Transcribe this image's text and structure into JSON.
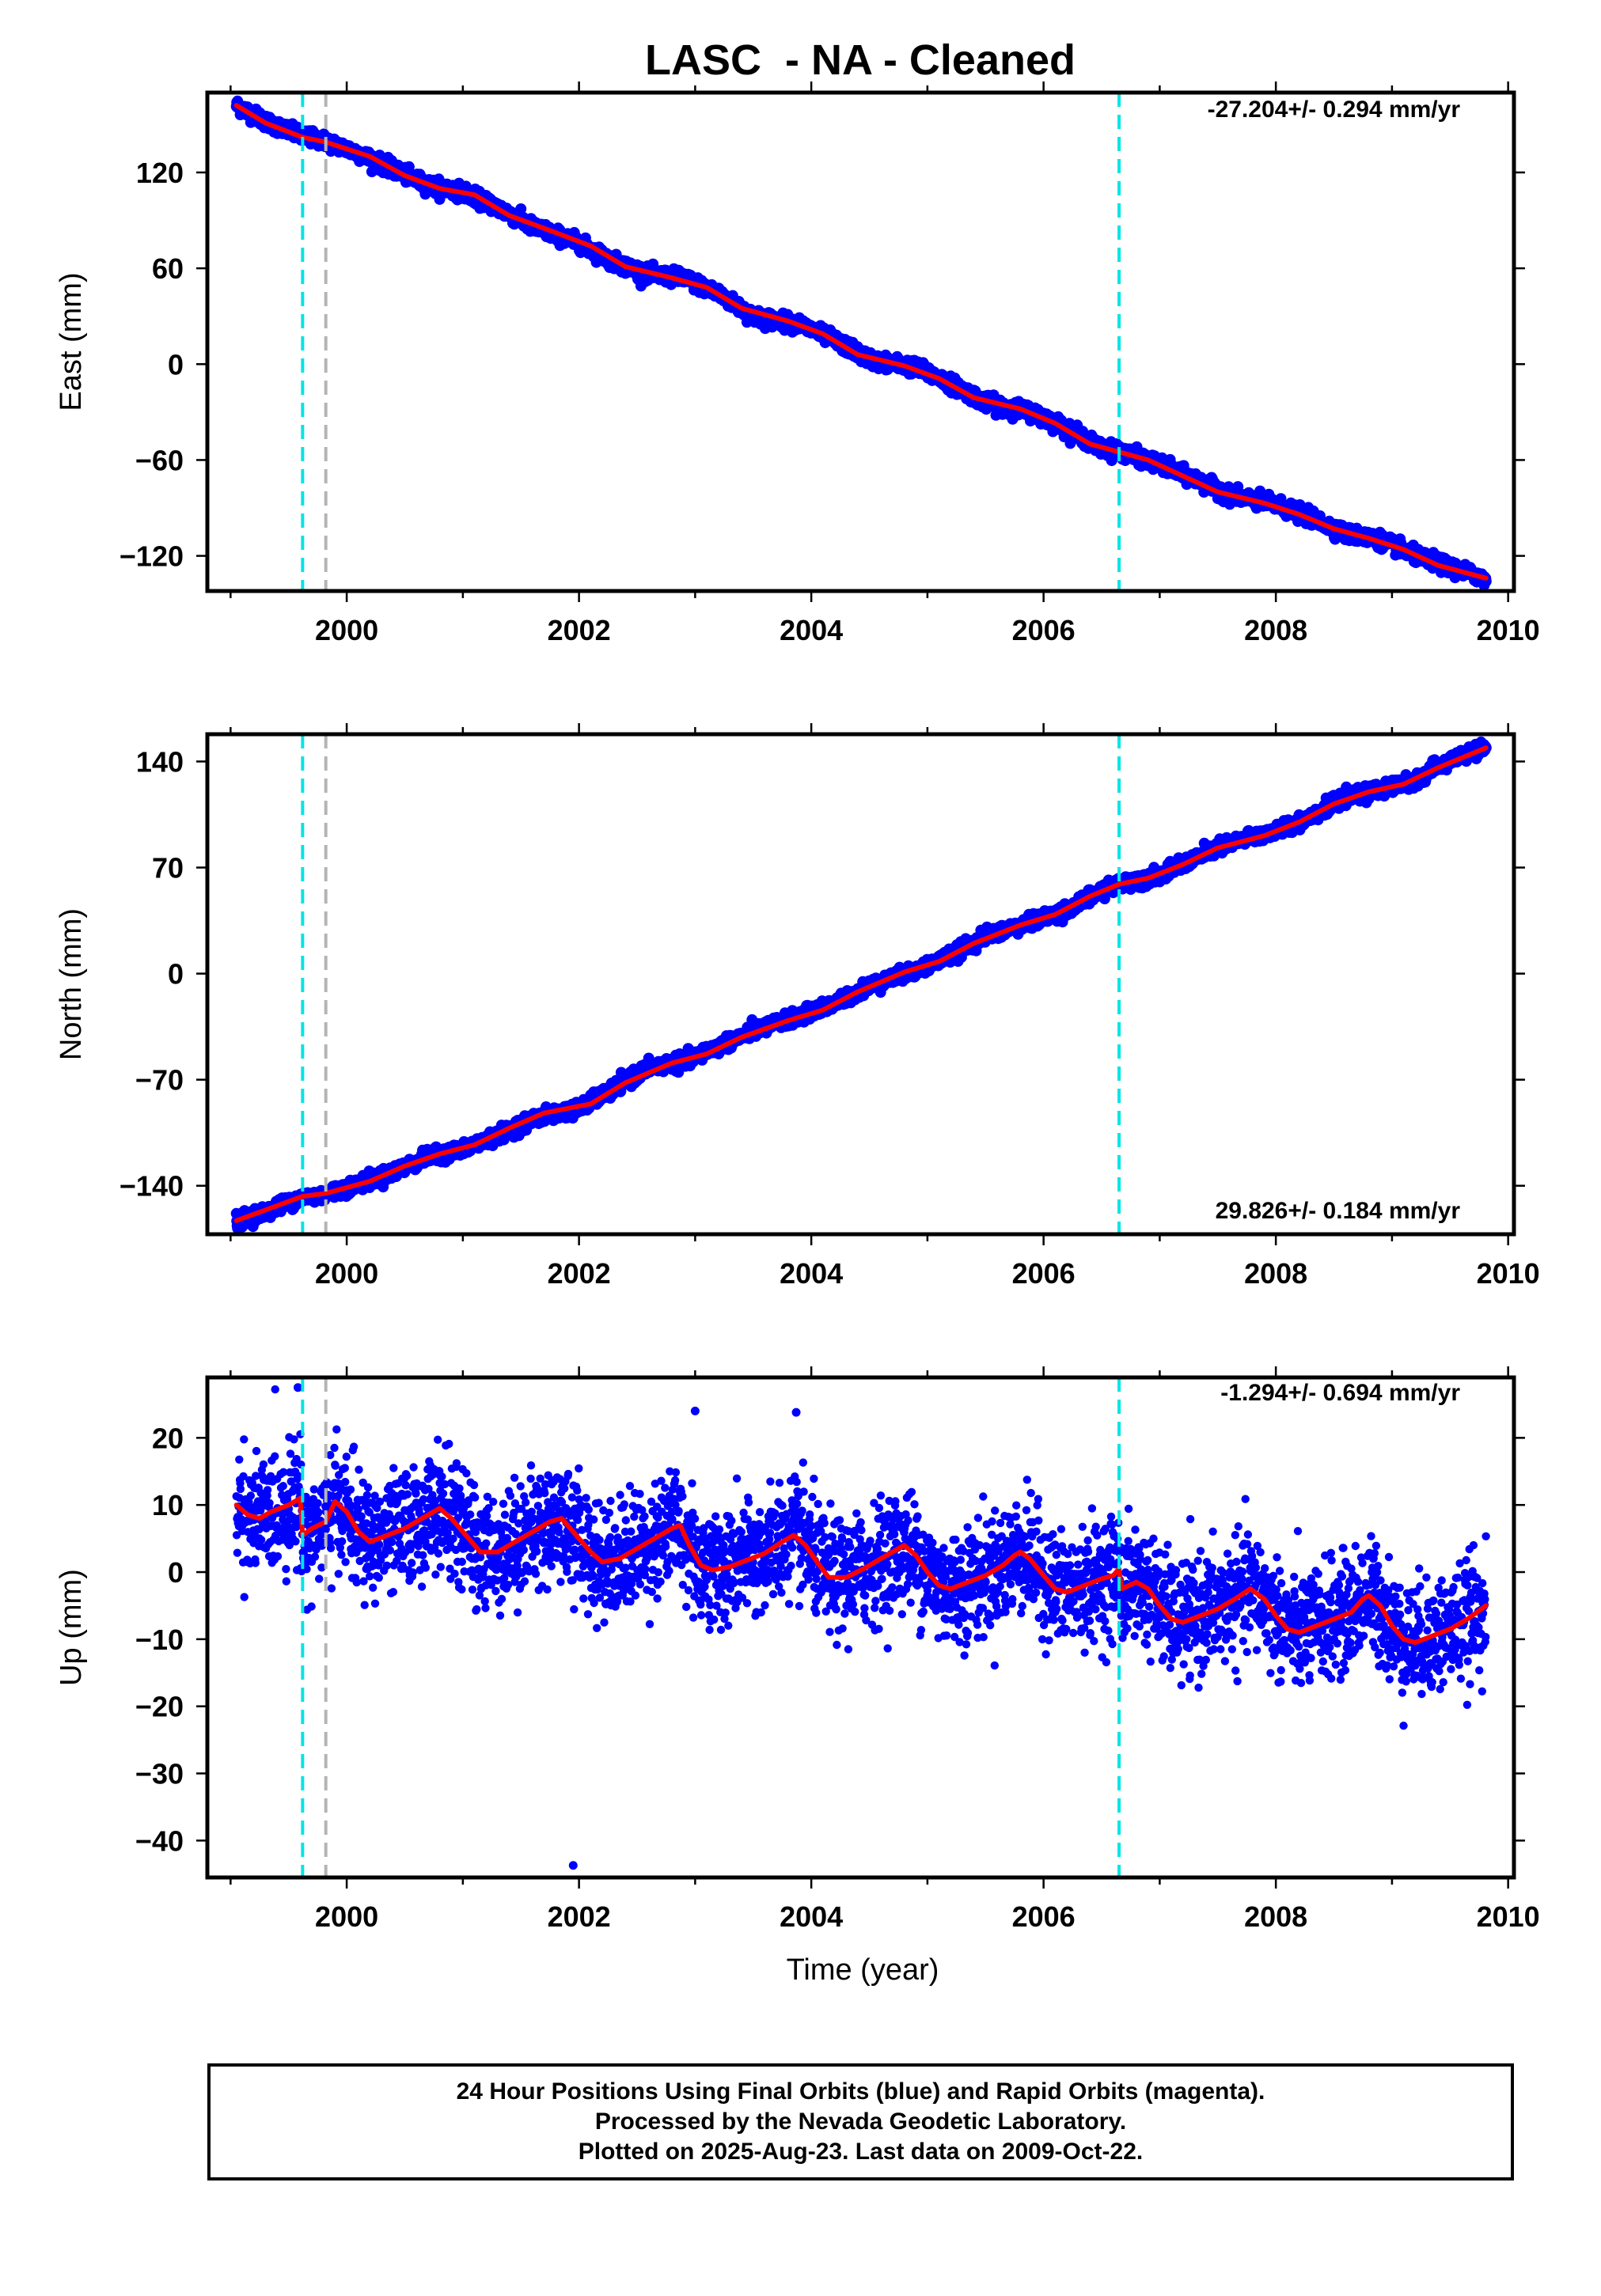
{
  "title": "LASC  - NA - Cleaned",
  "xlabel": "Time (year)",
  "footer": {
    "line1": "24 Hour Positions Using Final Orbits (blue) and Rapid Orbits (magenta).",
    "line2": "Processed by the Nevada Geodetic Laboratory.",
    "line3": "Plotted on 2025-Aug-23. Last data on 2009-Oct-22."
  },
  "colors": {
    "final_orbits": "#0000ff",
    "model_fit": "#ff0000",
    "antenna_change_line": "#00e5e5",
    "other_event_line": "#b4b4b4"
  },
  "chart_data": [
    {
      "type": "scatter",
      "ylabel": "East (mm)",
      "rate_label": "-27.204+/- 0.294 mm/yr",
      "xlim": [
        1998.8,
        2010.05
      ],
      "ylim": [
        -142,
        170
      ],
      "xticks": [
        2000,
        2002,
        2004,
        2006,
        2008,
        2010
      ],
      "yticks": [
        -120,
        -60,
        0,
        60,
        120
      ],
      "x_start": 1999.05,
      "x_end": 2009.81,
      "event_lines": [
        {
          "x": 1999.62,
          "kind": "antenna_change"
        },
        {
          "x": 1999.82,
          "kind": "other_event"
        },
        {
          "x": 2006.65,
          "kind": "antenna_change"
        }
      ],
      "series": [
        {
          "kind": "observations",
          "points": [
            [
              1999.05,
              162
            ],
            [
              1999.3,
              152
            ],
            [
              1999.6,
              143
            ],
            [
              1999.8,
              140
            ],
            [
              2000.1,
              132
            ],
            [
              2000.4,
              122
            ],
            [
              2000.7,
              112
            ],
            [
              2001.0,
              108
            ],
            [
              2001.3,
              98
            ],
            [
              2001.6,
              86
            ],
            [
              2002.0,
              76
            ],
            [
              2002.3,
              64
            ],
            [
              2002.6,
              56
            ],
            [
              2002.9,
              54
            ],
            [
              2003.2,
              44
            ],
            [
              2003.5,
              30
            ],
            [
              2003.9,
              25
            ],
            [
              2004.2,
              15
            ],
            [
              2004.5,
              3
            ],
            [
              2004.9,
              -2
            ],
            [
              2005.2,
              -12
            ],
            [
              2005.5,
              -24
            ],
            [
              2005.9,
              -30
            ],
            [
              2006.2,
              -40
            ],
            [
              2006.5,
              -53
            ],
            [
              2006.7,
              -55
            ],
            [
              2007.0,
              -63
            ],
            [
              2007.3,
              -72
            ],
            [
              2007.6,
              -82
            ],
            [
              2008.0,
              -88
            ],
            [
              2008.3,
              -96
            ],
            [
              2008.6,
              -106
            ],
            [
              2008.9,
              -110
            ],
            [
              2009.2,
              -120
            ],
            [
              2009.5,
              -127
            ],
            [
              2009.81,
              -134
            ]
          ]
        },
        {
          "kind": "model",
          "points": [
            [
              1999.05,
              162
            ],
            [
              1999.3,
              151
            ],
            [
              1999.62,
              142
            ],
            [
              1999.82,
              139
            ],
            [
              2000.2,
              130
            ],
            [
              2000.5,
              118
            ],
            [
              2000.8,
              110
            ],
            [
              2001.1,
              106
            ],
            [
              2001.4,
              93
            ],
            [
              2001.7,
              85
            ],
            [
              2002.1,
              74
            ],
            [
              2002.4,
              61
            ],
            [
              2002.8,
              54
            ],
            [
              2003.1,
              48
            ],
            [
              2003.4,
              35
            ],
            [
              2003.8,
              27
            ],
            [
              2004.1,
              19
            ],
            [
              2004.4,
              6
            ],
            [
              2004.8,
              -1
            ],
            [
              2005.1,
              -9
            ],
            [
              2005.4,
              -21
            ],
            [
              2005.8,
              -28
            ],
            [
              2006.1,
              -37
            ],
            [
              2006.4,
              -50
            ],
            [
              2006.65,
              -55
            ],
            [
              2006.9,
              -60
            ],
            [
              2007.2,
              -70
            ],
            [
              2007.5,
              -80
            ],
            [
              2007.9,
              -87
            ],
            [
              2008.2,
              -94
            ],
            [
              2008.5,
              -103
            ],
            [
              2008.8,
              -109
            ],
            [
              2009.1,
              -116
            ],
            [
              2009.4,
              -126
            ],
            [
              2009.81,
              -134
            ]
          ]
        }
      ]
    },
    {
      "type": "scatter",
      "ylabel": "North (mm)",
      "rate_label": "29.826+/- 0.184 mm/yr",
      "xlim": [
        1998.8,
        2010.05
      ],
      "ylim": [
        -172,
        158
      ],
      "xticks": [
        2000,
        2002,
        2004,
        2006,
        2008,
        2010
      ],
      "yticks": [
        -140,
        -70,
        0,
        70,
        140
      ],
      "x_start": 1999.05,
      "x_end": 2009.81,
      "event_lines": [
        {
          "x": 1999.62,
          "kind": "antenna_change"
        },
        {
          "x": 1999.82,
          "kind": "other_event"
        },
        {
          "x": 2006.65,
          "kind": "antenna_change"
        }
      ],
      "series": [
        {
          "kind": "observations",
          "points": [
            [
              1999.05,
              -163
            ],
            [
              1999.3,
              -157
            ],
            [
              1999.6,
              -148
            ],
            [
              1999.8,
              -146
            ],
            [
              2000.1,
              -139
            ],
            [
              2000.4,
              -131
            ],
            [
              2000.7,
              -121
            ],
            [
              2001.0,
              -116
            ],
            [
              2001.3,
              -107
            ],
            [
              2001.6,
              -96
            ],
            [
              2002.0,
              -89
            ],
            [
              2002.3,
              -76
            ],
            [
              2002.6,
              -62
            ],
            [
              2002.9,
              -58
            ],
            [
              2003.2,
              -48
            ],
            [
              2003.5,
              -38
            ],
            [
              2003.9,
              -28
            ],
            [
              2004.2,
              -20
            ],
            [
              2004.5,
              -8
            ],
            [
              2004.9,
              2
            ],
            [
              2005.2,
              12
            ],
            [
              2005.5,
              25
            ],
            [
              2005.9,
              34
            ],
            [
              2006.2,
              42
            ],
            [
              2006.5,
              55
            ],
            [
              2006.7,
              60
            ],
            [
              2007.0,
              65
            ],
            [
              2007.3,
              76
            ],
            [
              2007.6,
              86
            ],
            [
              2008.0,
              94
            ],
            [
              2008.3,
              104
            ],
            [
              2008.6,
              116
            ],
            [
              2008.9,
              121
            ],
            [
              2009.2,
              128
            ],
            [
              2009.5,
              141
            ],
            [
              2009.81,
              149
            ]
          ]
        },
        {
          "kind": "model",
          "points": [
            [
              1999.05,
              -163
            ],
            [
              1999.3,
              -156
            ],
            [
              1999.62,
              -147
            ],
            [
              1999.82,
              -145
            ],
            [
              2000.2,
              -137
            ],
            [
              2000.5,
              -127
            ],
            [
              2000.8,
              -119
            ],
            [
              2001.1,
              -113
            ],
            [
              2001.4,
              -102
            ],
            [
              2001.7,
              -92
            ],
            [
              2002.1,
              -86
            ],
            [
              2002.4,
              -72
            ],
            [
              2002.8,
              -59
            ],
            [
              2003.1,
              -53
            ],
            [
              2003.4,
              -42
            ],
            [
              2003.8,
              -31
            ],
            [
              2004.1,
              -24
            ],
            [
              2004.4,
              -12
            ],
            [
              2004.8,
              1
            ],
            [
              2005.1,
              8
            ],
            [
              2005.4,
              20
            ],
            [
              2005.8,
              32
            ],
            [
              2006.1,
              39
            ],
            [
              2006.4,
              51
            ],
            [
              2006.65,
              59
            ],
            [
              2006.9,
              63
            ],
            [
              2007.2,
              72
            ],
            [
              2007.5,
              83
            ],
            [
              2007.9,
              91
            ],
            [
              2008.2,
              100
            ],
            [
              2008.5,
              112
            ],
            [
              2008.8,
              120
            ],
            [
              2009.1,
              125
            ],
            [
              2009.4,
              136
            ],
            [
              2009.81,
              149
            ]
          ]
        }
      ]
    },
    {
      "type": "scatter",
      "ylabel": "Up (mm)",
      "rate_label": "-1.294+/- 0.694 mm/yr",
      "xlim": [
        1998.8,
        2010.05
      ],
      "ylim": [
        -45.5,
        29
      ],
      "xticks": [
        2000,
        2002,
        2004,
        2006,
        2008,
        2010
      ],
      "yticks": [
        -40,
        -30,
        -20,
        -10,
        0,
        10,
        20
      ],
      "x_start": 1999.05,
      "x_end": 2009.81,
      "event_lines": [
        {
          "x": 1999.62,
          "kind": "antenna_change"
        },
        {
          "x": 1999.82,
          "kind": "other_event"
        },
        {
          "x": 2006.65,
          "kind": "antenna_change"
        }
      ],
      "series": [
        {
          "kind": "model",
          "points": [
            [
              1999.05,
              10
            ],
            [
              1999.15,
              8.5
            ],
            [
              1999.25,
              8
            ],
            [
              1999.35,
              9
            ],
            [
              1999.5,
              10
            ],
            [
              1999.6,
              11
            ],
            [
              1999.62,
              5.5
            ],
            [
              1999.7,
              6.5
            ],
            [
              1999.82,
              7.5
            ],
            [
              1999.9,
              10.5
            ],
            [
              2000.0,
              9
            ],
            [
              2000.1,
              6
            ],
            [
              2000.2,
              4.5
            ],
            [
              2000.35,
              5.5
            ],
            [
              2000.5,
              6.5
            ],
            [
              2000.65,
              8
            ],
            [
              2000.8,
              9.5
            ],
            [
              2000.9,
              8
            ],
            [
              2001.0,
              6
            ],
            [
              2001.15,
              3
            ],
            [
              2001.3,
              3
            ],
            [
              2001.45,
              4.5
            ],
            [
              2001.6,
              6
            ],
            [
              2001.75,
              7.5
            ],
            [
              2001.85,
              8
            ],
            [
              2001.95,
              6
            ],
            [
              2002.1,
              3
            ],
            [
              2002.2,
              1.5
            ],
            [
              2002.35,
              2
            ],
            [
              2002.5,
              3.5
            ],
            [
              2002.65,
              5
            ],
            [
              2002.8,
              6.5
            ],
            [
              2002.87,
              7
            ],
            [
              2002.95,
              4
            ],
            [
              2003.05,
              1
            ],
            [
              2003.15,
              0.3
            ],
            [
              2003.3,
              0.8
            ],
            [
              2003.45,
              1.8
            ],
            [
              2003.6,
              2.8
            ],
            [
              2003.75,
              4.5
            ],
            [
              2003.85,
              5.5
            ],
            [
              2003.95,
              4
            ],
            [
              2004.05,
              1.5
            ],
            [
              2004.15,
              -0.8
            ],
            [
              2004.3,
              -0.8
            ],
            [
              2004.45,
              0.5
            ],
            [
              2004.6,
              2
            ],
            [
              2004.75,
              3.5
            ],
            [
              2004.8,
              4
            ],
            [
              2004.9,
              2.5
            ],
            [
              2005.0,
              0
            ],
            [
              2005.1,
              -2
            ],
            [
              2005.2,
              -2.5
            ],
            [
              2005.35,
              -1.5
            ],
            [
              2005.5,
              -0.5
            ],
            [
              2005.65,
              1
            ],
            [
              2005.75,
              2.5
            ],
            [
              2005.8,
              3
            ],
            [
              2005.88,
              2
            ],
            [
              2006.0,
              -0.5
            ],
            [
              2006.1,
              -2.5
            ],
            [
              2006.2,
              -3
            ],
            [
              2006.35,
              -2
            ],
            [
              2006.5,
              -1
            ],
            [
              2006.6,
              -0.5
            ],
            [
              2006.65,
              0.5
            ],
            [
              2006.67,
              -2.5
            ],
            [
              2006.8,
              -1.5
            ],
            [
              2006.9,
              -2.5
            ],
            [
              2007.0,
              -5
            ],
            [
              2007.1,
              -7
            ],
            [
              2007.2,
              -7.5
            ],
            [
              2007.35,
              -6.5
            ],
            [
              2007.5,
              -5.5
            ],
            [
              2007.65,
              -4
            ],
            [
              2007.78,
              -2.5
            ],
            [
              2007.9,
              -4
            ],
            [
              2008.0,
              -6.5
            ],
            [
              2008.1,
              -8.5
            ],
            [
              2008.2,
              -9
            ],
            [
              2008.35,
              -8
            ],
            [
              2008.5,
              -7
            ],
            [
              2008.65,
              -6
            ],
            [
              2008.75,
              -4
            ],
            [
              2008.8,
              -3.5
            ],
            [
              2008.9,
              -5
            ],
            [
              2009.0,
              -8
            ],
            [
              2009.1,
              -10
            ],
            [
              2009.2,
              -10.5
            ],
            [
              2009.35,
              -9.5
            ],
            [
              2009.5,
              -8.5
            ],
            [
              2009.65,
              -7
            ],
            [
              2009.81,
              -5
            ]
          ]
        },
        {
          "kind": "observations",
          "outlier_points": [
            [
              1999.58,
              27.5
            ],
            [
              2001.95,
              -43.7
            ],
            [
              2003.0,
              24
            ],
            [
              2003.87,
              23.8
            ]
          ]
        }
      ]
    }
  ]
}
